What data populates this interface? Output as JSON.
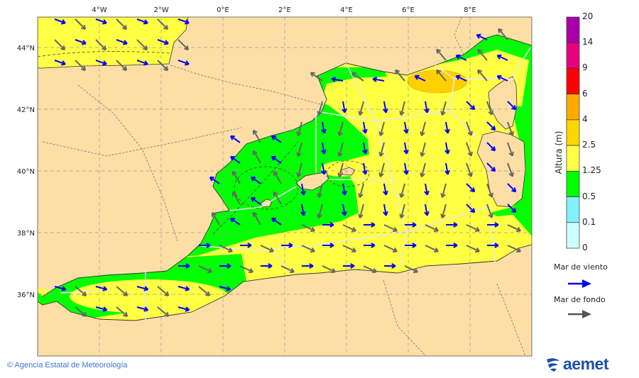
{
  "map": {
    "longitude_labels": [
      "4°W",
      "2°W",
      "0°E",
      "2°E",
      "4°E",
      "6°E",
      "8°E"
    ],
    "latitude_labels": [
      "44°N",
      "42°N",
      "40°N",
      "38°N",
      "36°N"
    ],
    "colors": {
      "land": "#fddfa6",
      "sea_low": "#ffff44",
      "sea_green": "#00ff00",
      "sea_orange": "#ffd000",
      "wind_sea_arrow": "#0000ff",
      "swell_arrow": "#666666"
    }
  },
  "colorbar": {
    "title": "Altura (m)",
    "labels": [
      "20",
      "14",
      "9",
      "6",
      "4",
      "2.5",
      "1.25",
      "0.5",
      "0.1",
      "0"
    ],
    "colors": [
      "#aa00aa",
      "#e6007e",
      "#ff0000",
      "#ffaa00",
      "#ffd700",
      "#ffff44",
      "#00ff00",
      "#80f2ff",
      "#ccffff"
    ]
  },
  "legend": {
    "wind_sea": "Mar de viento",
    "swell": "Mar de fondo"
  },
  "footer": {
    "copyright": "© Agencia Estatal de Meteorología",
    "logo_text": "aemet"
  }
}
